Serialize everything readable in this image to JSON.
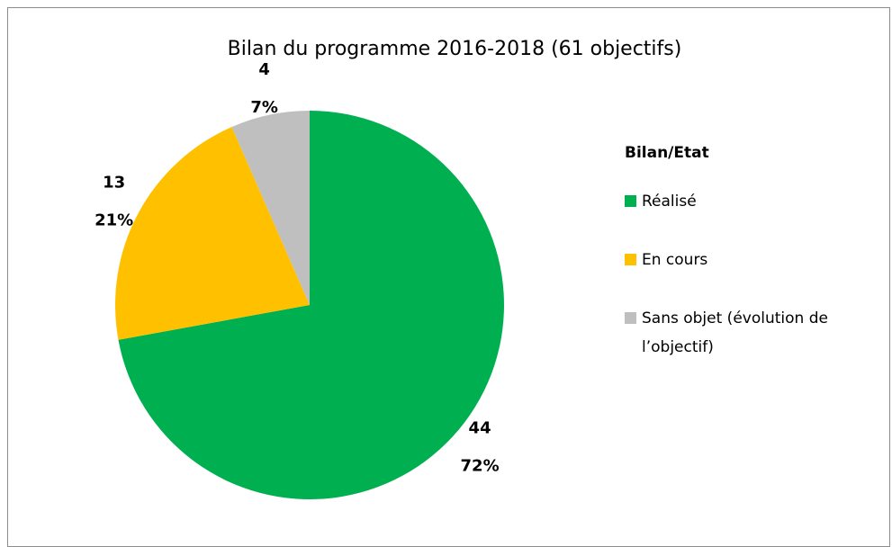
{
  "chart_data": {
    "type": "pie",
    "title": "Bilan du programme 2016-2018  (61 objectifs)",
    "legend_title": "Bilan/Etat",
    "categories": [
      "Réalisé",
      "En cours",
      "Sans objet (évolution de l’objectif)"
    ],
    "values": [
      44,
      13,
      4
    ],
    "percent_labels": [
      "72%",
      "21%",
      "7%"
    ],
    "colors": [
      "#00b050",
      "#ffc000",
      "#bfbfbf"
    ],
    "legend": "right"
  }
}
